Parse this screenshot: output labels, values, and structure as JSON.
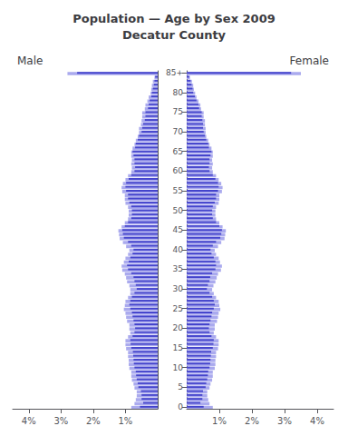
{
  "chart_data": [
    {
      "type": "bar",
      "orientation": "horizontal",
      "title": "Population — Age by Sex 2009\nDecatur County",
      "subtitle": "Male",
      "categories": [
        "0",
        null,
        null,
        null,
        null,
        "5",
        null,
        null,
        null,
        null,
        "10",
        null,
        null,
        null,
        null,
        "15",
        null,
        null,
        null,
        null,
        "20",
        null,
        null,
        null,
        null,
        "25",
        null,
        null,
        null,
        null,
        "30",
        null,
        null,
        null,
        null,
        "35",
        null,
        null,
        null,
        null,
        "40",
        null,
        null,
        null,
        null,
        "45",
        null,
        null,
        null,
        null,
        "50",
        null,
        null,
        null,
        null,
        "55",
        null,
        null,
        null,
        null,
        "60",
        null,
        null,
        null,
        null,
        "65",
        null,
        null,
        null,
        null,
        "70",
        null,
        null,
        null,
        null,
        "75",
        null,
        null,
        null,
        null,
        "80",
        null,
        null,
        null,
        null,
        "85+"
      ],
      "series": [
        {
          "color": "#aaaaee",
          "values": [
            0.82,
            0.72,
            0.68,
            0.65,
            0.65,
            0.72,
            0.75,
            0.8,
            0.82,
            0.82,
            0.88,
            0.9,
            0.9,
            0.92,
            0.92,
            0.98,
            1.0,
            1.0,
            0.92,
            0.85,
            0.88,
            0.88,
            0.95,
            0.98,
            1.0,
            1.05,
            1.02,
            1.0,
            0.92,
            0.85,
            0.85,
            0.88,
            0.95,
            0.98,
            1.02,
            1.1,
            1.12,
            1.05,
            1.0,
            0.92,
            0.88,
            0.98,
            1.08,
            1.18,
            1.2,
            1.22,
            1.12,
            1.02,
            0.92,
            0.9,
            0.9,
            0.92,
            1.0,
            1.02,
            1.02,
            1.1,
            1.12,
            1.08,
            1.0,
            0.92,
            0.82,
            0.8,
            0.82,
            0.8,
            0.82,
            0.82,
            0.78,
            0.72,
            0.68,
            0.62,
            0.58,
            0.58,
            0.52,
            0.5,
            0.48,
            0.48,
            0.4,
            0.38,
            0.32,
            0.28,
            0.22,
            0.2,
            0.18,
            0.15,
            0.1,
            2.8
          ]
        },
        {
          "color": "#4444cc",
          "values": [
            0.55,
            0.45,
            0.5,
            0.5,
            0.52,
            0.6,
            0.62,
            0.65,
            0.67,
            0.68,
            0.72,
            0.74,
            0.75,
            0.76,
            0.77,
            0.82,
            0.84,
            0.85,
            0.78,
            0.72,
            0.7,
            0.72,
            0.75,
            0.78,
            0.8,
            0.85,
            0.88,
            0.85,
            0.8,
            0.72,
            0.65,
            0.68,
            0.72,
            0.75,
            0.82,
            0.92,
            0.95,
            0.9,
            0.85,
            0.78,
            0.75,
            0.82,
            0.92,
            1.05,
            1.08,
            1.1,
            1.02,
            0.92,
            0.82,
            0.8,
            0.8,
            0.82,
            0.88,
            0.92,
            0.92,
            0.98,
            1.0,
            0.98,
            0.9,
            0.82,
            0.72,
            0.7,
            0.72,
            0.72,
            0.75,
            0.78,
            0.7,
            0.68,
            0.62,
            0.58,
            0.5,
            0.48,
            0.45,
            0.4,
            0.38,
            0.38,
            0.3,
            0.28,
            0.25,
            0.2,
            0.18,
            0.15,
            0.12,
            0.1,
            0.08,
            2.5
          ]
        }
      ],
      "xlim": [
        0,
        4.5
      ],
      "xticks": [
        {
          "value": 1,
          "label": "1%"
        },
        {
          "value": 2,
          "label": "2%"
        },
        {
          "value": 3,
          "label": "3%"
        },
        {
          "value": 4,
          "label": "4%"
        }
      ],
      "grid": false,
      "tick_labels": "x"
    },
    {
      "type": "bar",
      "orientation": "horizontal",
      "subtitle": "Female",
      "categories": [
        "0",
        null,
        null,
        null,
        null,
        "5",
        null,
        null,
        null,
        null,
        "10",
        null,
        null,
        null,
        null,
        "15",
        null,
        null,
        null,
        null,
        "20",
        null,
        null,
        null,
        null,
        "25",
        null,
        null,
        null,
        null,
        "30",
        null,
        null,
        null,
        null,
        "35",
        null,
        null,
        null,
        null,
        "40",
        null,
        null,
        null,
        null,
        "45",
        null,
        null,
        null,
        null,
        "50",
        null,
        null,
        null,
        null,
        "55",
        null,
        null,
        null,
        null,
        "60",
        null,
        null,
        null,
        null,
        "65",
        null,
        null,
        null,
        null,
        "70",
        null,
        null,
        null,
        null,
        "75",
        null,
        null,
        null,
        null,
        "80",
        null,
        null,
        null,
        null,
        "85+"
      ],
      "series": [
        {
          "color": "#aaaaee",
          "values": [
            0.8,
            0.7,
            0.66,
            0.63,
            0.63,
            0.7,
            0.73,
            0.78,
            0.8,
            0.8,
            0.86,
            0.88,
            0.88,
            0.9,
            0.9,
            0.96,
            0.98,
            0.98,
            0.9,
            0.83,
            0.86,
            0.86,
            0.93,
            0.96,
            0.98,
            1.03,
            1.0,
            0.98,
            0.9,
            0.83,
            0.78,
            0.82,
            0.88,
            0.92,
            0.96,
            1.05,
            1.08,
            1.02,
            0.98,
            0.9,
            0.86,
            0.96,
            1.06,
            1.16,
            1.18,
            1.2,
            1.1,
            1.0,
            0.9,
            0.88,
            0.88,
            0.9,
            0.98,
            1.0,
            1.0,
            1.08,
            1.1,
            1.06,
            0.98,
            0.9,
            0.8,
            0.78,
            0.8,
            0.78,
            0.8,
            0.8,
            0.76,
            0.7,
            0.66,
            0.6,
            0.58,
            0.58,
            0.56,
            0.56,
            0.52,
            0.52,
            0.44,
            0.42,
            0.36,
            0.3,
            0.26,
            0.22,
            0.2,
            0.16,
            0.1,
            3.5
          ]
        },
        {
          "color": "#4444cc",
          "values": [
            0.52,
            0.42,
            0.48,
            0.48,
            0.5,
            0.58,
            0.6,
            0.63,
            0.65,
            0.66,
            0.7,
            0.72,
            0.73,
            0.74,
            0.75,
            0.8,
            0.82,
            0.83,
            0.76,
            0.7,
            0.68,
            0.7,
            0.73,
            0.76,
            0.78,
            0.83,
            0.86,
            0.83,
            0.78,
            0.7,
            0.62,
            0.65,
            0.7,
            0.72,
            0.78,
            0.88,
            0.9,
            0.88,
            0.83,
            0.76,
            0.73,
            0.8,
            0.9,
            1.03,
            1.06,
            1.08,
            1.0,
            0.9,
            0.8,
            0.78,
            0.78,
            0.8,
            0.86,
            0.9,
            0.9,
            0.96,
            0.98,
            0.96,
            0.88,
            0.8,
            0.7,
            0.68,
            0.7,
            0.7,
            0.73,
            0.76,
            0.68,
            0.66,
            0.6,
            0.56,
            0.52,
            0.5,
            0.5,
            0.48,
            0.46,
            0.46,
            0.38,
            0.36,
            0.3,
            0.25,
            0.2,
            0.18,
            0.15,
            0.12,
            0.08,
            3.2
          ]
        }
      ],
      "xlim": [
        0,
        4.5
      ],
      "xticks": [
        {
          "value": 1,
          "label": "1%"
        },
        {
          "value": 2,
          "label": "2%"
        },
        {
          "value": 3,
          "label": "3%"
        },
        {
          "value": 4,
          "label": "4%"
        }
      ],
      "grid": false
    }
  ]
}
